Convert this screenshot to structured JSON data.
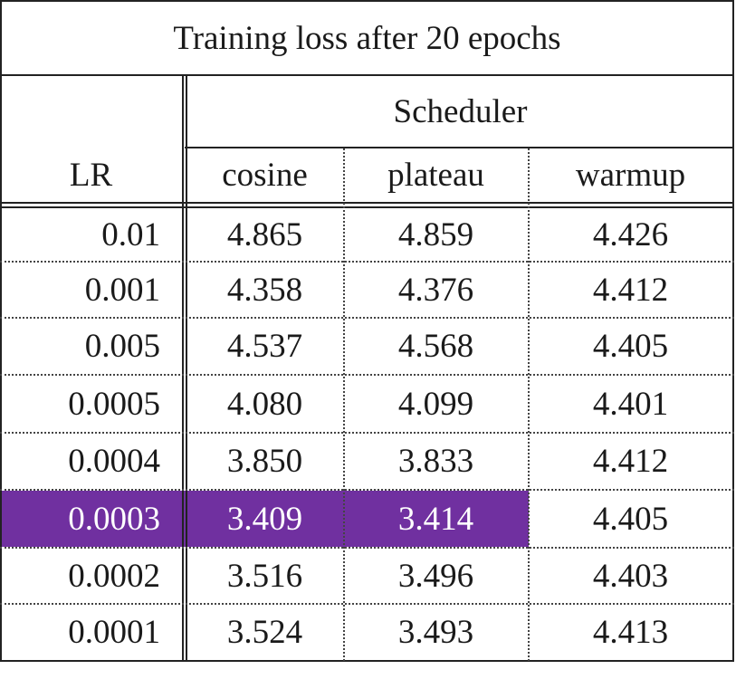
{
  "table": {
    "title": "Training loss after 20 epochs",
    "group_header": "Scheduler",
    "row_header": "LR",
    "columns": [
      "cosine",
      "plateau",
      "warmup"
    ],
    "rows": [
      {
        "lr": "0.01",
        "values": [
          "4.865",
          "4.859",
          "4.426"
        ]
      },
      {
        "lr": "0.001",
        "values": [
          "4.358",
          "4.376",
          "4.412"
        ]
      },
      {
        "lr": "0.005",
        "values": [
          "4.537",
          "4.568",
          "4.405"
        ]
      },
      {
        "lr": "0.0005",
        "values": [
          "4.080",
          "4.099",
          "4.401"
        ]
      },
      {
        "lr": "0.0004",
        "values": [
          "3.850",
          "3.833",
          "4.412"
        ]
      },
      {
        "lr": "0.0003",
        "values": [
          "3.409",
          "3.414",
          "4.405"
        ]
      },
      {
        "lr": "0.0002",
        "values": [
          "3.516",
          "3.496",
          "4.403"
        ]
      },
      {
        "lr": "0.0001",
        "values": [
          "3.524",
          "3.493",
          "4.413"
        ]
      }
    ],
    "highlight": {
      "row": 5,
      "columns": [
        0,
        1
      ],
      "color": "#7030a0"
    }
  }
}
